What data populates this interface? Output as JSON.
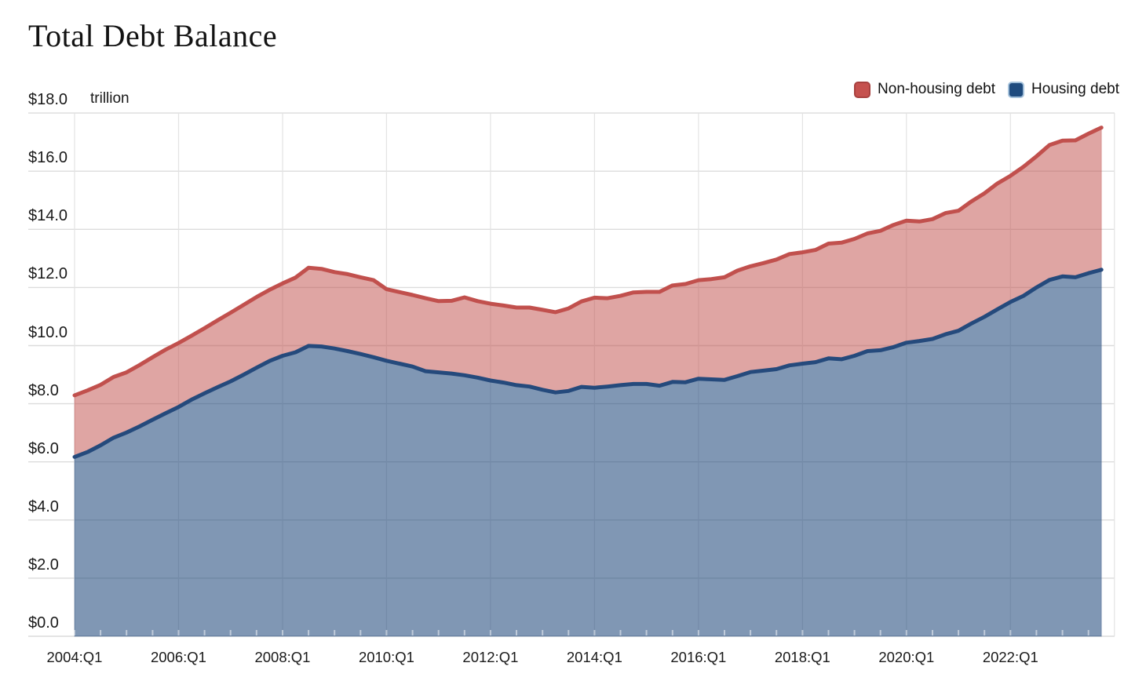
{
  "title": "Total Debt Balance",
  "unit_label": "trillion",
  "legend": [
    {
      "label": "Non-housing debt",
      "swatch_color": "#c5514e",
      "swatch_border": "#a8413f"
    },
    {
      "label": "Housing debt",
      "swatch_color": "#1f4b7e",
      "swatch_border": "#a3c0da"
    }
  ],
  "y_axis": {
    "tick_labels": [
      "$18.0",
      "$16.0",
      "$14.0",
      "$12.0",
      "$10.0",
      "$8.0",
      "$6.0",
      "$4.0",
      "$2.0",
      "$0.0"
    ],
    "tick_values": [
      18,
      16,
      14,
      12,
      10,
      8,
      6,
      4,
      2,
      0
    ]
  },
  "x_axis": {
    "tick_labels": [
      "2004:Q1",
      "2006:Q1",
      "2008:Q1",
      "2010:Q1",
      "2012:Q1",
      "2014:Q1",
      "2016:Q1",
      "2018:Q1",
      "2020:Q1",
      "2022:Q1"
    ],
    "ticks_every_n_quarters": 8
  },
  "chart_data": {
    "type": "area",
    "subtype": "stacked",
    "title": "Total Debt Balance",
    "unit": "trillion USD",
    "frequency": "quarterly",
    "x_start": "2004:Q1",
    "x_end": "2023:Q4",
    "n_points": 80,
    "ylim": [
      0,
      18
    ],
    "grid": "horizontal every $2.0 trillion, vertical every 2 years",
    "legend_position": "top-right",
    "series": [
      {
        "name": "Housing debt",
        "line_color": "#254a7c",
        "fill_color": "rgba(37,75,125,0.58)",
        "values": [
          6.17,
          6.34,
          6.57,
          6.83,
          7.01,
          7.22,
          7.45,
          7.67,
          7.89,
          8.14,
          8.36,
          8.57,
          8.77,
          9.0,
          9.24,
          9.47,
          9.65,
          9.77,
          9.99,
          9.97,
          9.9,
          9.81,
          9.71,
          9.6,
          9.48,
          9.38,
          9.28,
          9.12,
          9.08,
          9.04,
          8.98,
          8.9,
          8.8,
          8.73,
          8.64,
          8.59,
          8.48,
          8.39,
          8.44,
          8.58,
          8.55,
          8.59,
          8.64,
          8.68,
          8.68,
          8.62,
          8.75,
          8.74,
          8.86,
          8.84,
          8.82,
          8.95,
          9.09,
          9.14,
          9.19,
          9.32,
          9.38,
          9.43,
          9.56,
          9.53,
          9.65,
          9.81,
          9.84,
          9.95,
          10.1,
          10.16,
          10.23,
          10.39,
          10.51,
          10.76,
          10.99,
          11.25,
          11.5,
          11.71,
          12.0,
          12.26,
          12.38,
          12.35,
          12.49,
          12.61
        ]
      },
      {
        "name": "Non-housing debt",
        "line_color": "#c1504d",
        "fill_color": "rgba(194,82,79,0.52)",
        "values": [
          2.12,
          2.12,
          2.08,
          2.09,
          2.07,
          2.11,
          2.15,
          2.19,
          2.2,
          2.2,
          2.24,
          2.3,
          2.36,
          2.4,
          2.43,
          2.45,
          2.49,
          2.57,
          2.69,
          2.67,
          2.63,
          2.65,
          2.64,
          2.65,
          2.46,
          2.46,
          2.46,
          2.51,
          2.45,
          2.5,
          2.68,
          2.63,
          2.64,
          2.65,
          2.67,
          2.72,
          2.75,
          2.76,
          2.84,
          2.94,
          3.1,
          3.04,
          3.07,
          3.15,
          3.17,
          3.23,
          3.32,
          3.38,
          3.39,
          3.45,
          3.53,
          3.63,
          3.64,
          3.7,
          3.77,
          3.83,
          3.83,
          3.86,
          3.95,
          4.01,
          4.02,
          4.05,
          4.11,
          4.2,
          4.2,
          4.11,
          4.12,
          4.17,
          4.13,
          4.2,
          4.25,
          4.33,
          4.34,
          4.44,
          4.51,
          4.64,
          4.67,
          4.71,
          4.8,
          4.89
        ]
      }
    ],
    "top_line_is_total_debt": true,
    "total_start": 8.29,
    "total_peak_2008Q3": 12.68,
    "total_trough_2013Q2": 11.15,
    "total_end_2023Q4": 17.5
  }
}
